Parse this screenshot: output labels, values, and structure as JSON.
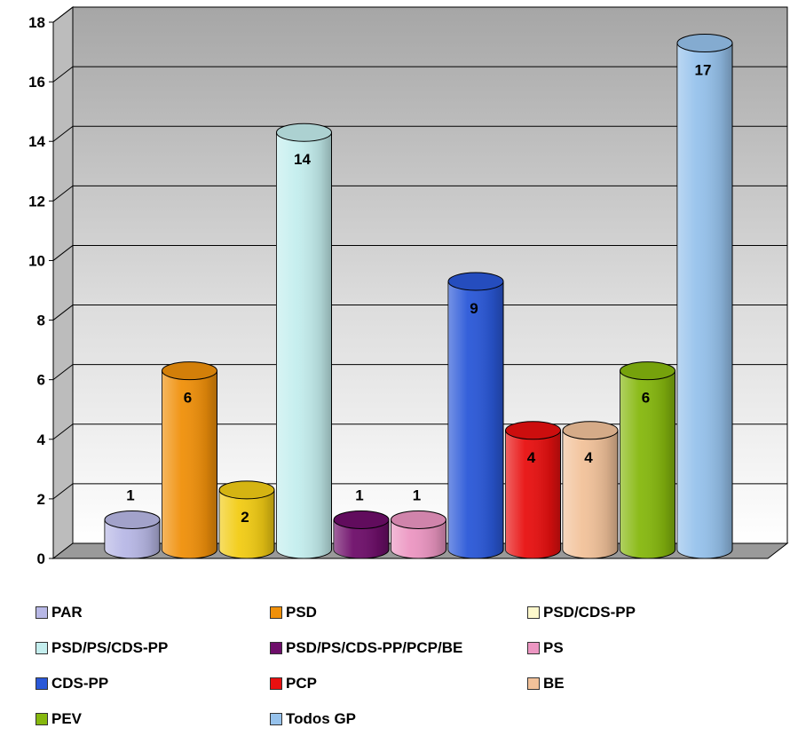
{
  "chart_data": {
    "type": "bar",
    "style": "3d-cylinder",
    "title": "",
    "xlabel": "",
    "ylabel": "",
    "ylim": [
      0,
      18
    ],
    "yticks": [
      0,
      2,
      4,
      6,
      8,
      10,
      12,
      14,
      16,
      18
    ],
    "grid": true,
    "legend_position": "bottom",
    "series": [
      {
        "name": "PAR",
        "value": 1,
        "value_label": "1",
        "color": "#b8b8e6"
      },
      {
        "name": "PSD",
        "value": 6,
        "value_label": "6",
        "color": "#f0900a"
      },
      {
        "name": "PSD/CDS-PP",
        "value": 2,
        "value_label": "2",
        "color": "#f2cc14"
      },
      {
        "name": "PSD/PS/CDS-PP",
        "value": 14,
        "value_label": "14",
        "color": "#c4eeee"
      },
      {
        "name": "PSD/PS/CDS-PP/PCP/BE",
        "value": 1,
        "value_label": "1",
        "color": "#6e0e6a"
      },
      {
        "name": "PS",
        "value": 1,
        "value_label": "1",
        "color": "#ec96c2"
      },
      {
        "name": "CDS-PP",
        "value": 9,
        "value_label": "9",
        "color": "#2a58d8"
      },
      {
        "name": "PCP",
        "value": 4,
        "value_label": "4",
        "color": "#e81010"
      },
      {
        "name": "BE",
        "value": 4,
        "value_label": "4",
        "color": "#f2c29a"
      },
      {
        "name": "PEV",
        "value": 6,
        "value_label": "6",
        "color": "#86b80e"
      },
      {
        "name": "Todos GP",
        "value": 17,
        "value_label": "17",
        "color": "#96c2ec"
      }
    ],
    "legend_swatch_colors": [
      "#b8b8e6",
      "#f0900a",
      "#fdf8cc",
      "#c4eeee",
      "#6e0e6a",
      "#ec96c2",
      "#2a58d8",
      "#e81010",
      "#f2c29a",
      "#86b80e",
      "#96c2ec"
    ]
  }
}
